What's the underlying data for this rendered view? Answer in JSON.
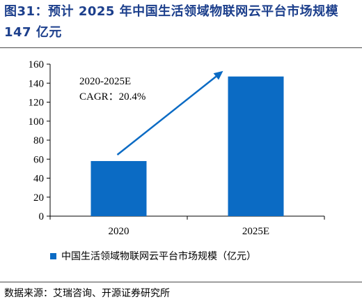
{
  "title": "图31：预计 2025 年中国生活领域物联网云平台市场规模 147 亿元",
  "source": "数据来源：艾瑞咨询、开源证券研究所",
  "colors": {
    "bar": "#0b6bc4",
    "arrow": "#0b6bc4",
    "title": "#1c3f8c"
  },
  "chart_data": {
    "type": "bar",
    "categories": [
      "2020",
      "2025E"
    ],
    "series": [
      {
        "name": "中国生活领域物联网云平台市场规模（亿元）",
        "values": [
          58,
          147
        ]
      }
    ],
    "ylim": [
      0,
      160
    ],
    "yticks": [
      "0",
      "20",
      "40",
      "60",
      "80",
      "100",
      "120",
      "140",
      "160"
    ],
    "grid": false,
    "legend_position": "bottom-left",
    "annotation": {
      "line1": "2020-2025E",
      "line2": "CAGR：20.4%"
    }
  }
}
